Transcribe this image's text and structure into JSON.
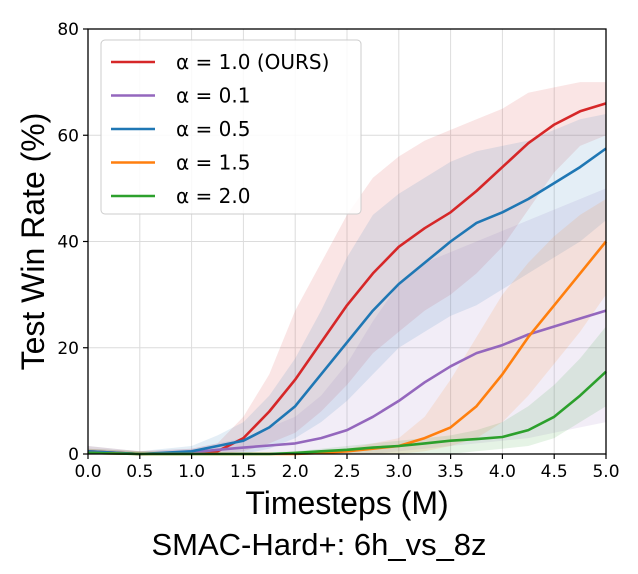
{
  "chart_data": {
    "type": "line",
    "title": "SMAC-Hard+: 6h_vs_8z",
    "xlabel": "Timesteps (M)",
    "ylabel": "Test Win Rate (%)",
    "xlim": [
      0,
      5
    ],
    "ylim": [
      0,
      80
    ],
    "xticks": [
      "0.0",
      "0.5",
      "1.0",
      "1.5",
      "2.0",
      "2.5",
      "3.0",
      "3.5",
      "4.0",
      "4.5",
      "5.0"
    ],
    "yticks": [
      "0",
      "20",
      "40",
      "60",
      "80"
    ],
    "grid": true,
    "legend_position": "top-left",
    "x": [
      0,
      0.5,
      1.0,
      1.25,
      1.5,
      1.75,
      2.0,
      2.25,
      2.5,
      2.75,
      3.0,
      3.25,
      3.5,
      3.75,
      4.0,
      4.25,
      4.5,
      4.75,
      5.0
    ],
    "series": [
      {
        "name": "α = 1.0 (OURS)",
        "color": "#d62728",
        "values": [
          0.5,
          0,
          0.2,
          0.5,
          3,
          8,
          14,
          21,
          28,
          34,
          39,
          42.5,
          45.5,
          49.5,
          54,
          58.5,
          62,
          64.5,
          66
        ],
        "lower": [
          0,
          0,
          0,
          0,
          0.5,
          2,
          4,
          8,
          13,
          19,
          23,
          27,
          30,
          34,
          39,
          46,
          53,
          58,
          60
        ],
        "upper": [
          1.5,
          0.5,
          1,
          2,
          7,
          15,
          27,
          36,
          45,
          52,
          56,
          59,
          61,
          63,
          65,
          68,
          69,
          70,
          70
        ]
      },
      {
        "name": "α = 0.1",
        "color": "#9467bd",
        "values": [
          0.3,
          0,
          0.3,
          0.8,
          1.2,
          1.6,
          2,
          3,
          4.5,
          7,
          10,
          13.5,
          16.5,
          19,
          20.5,
          22.5,
          24,
          25.5,
          27
        ],
        "lower": [
          0,
          0,
          0,
          0,
          0,
          0,
          0,
          0,
          0,
          0,
          0.5,
          1,
          1.5,
          2,
          2.5,
          3,
          4,
          5,
          6
        ],
        "upper": [
          1,
          0.5,
          1,
          2,
          3,
          5,
          7,
          11,
          17,
          25,
          32,
          36,
          38,
          40,
          42,
          44,
          46,
          48,
          50
        ]
      },
      {
        "name": "α = 0.5",
        "color": "#1f77b4",
        "values": [
          0.5,
          0,
          0.5,
          1.5,
          2.5,
          5,
          9,
          15,
          21,
          27,
          32,
          36,
          40,
          43.5,
          45.5,
          48,
          51,
          54,
          57.5
        ],
        "lower": [
          0,
          0,
          0,
          0,
          0,
          1,
          3,
          6,
          10,
          15,
          20,
          23,
          26,
          28,
          31,
          34,
          37,
          40,
          44
        ],
        "upper": [
          1.5,
          0.5,
          1.5,
          3.5,
          6,
          11,
          18,
          27,
          37,
          45,
          49,
          52,
          55,
          57,
          58,
          59,
          61,
          63,
          64
        ]
      },
      {
        "name": "α = 1.5",
        "color": "#ff7f0e",
        "values": [
          0.2,
          0,
          0,
          0,
          0,
          0,
          0,
          0.2,
          0.5,
          1,
          1.5,
          3,
          5,
          9,
          15,
          22,
          28,
          34,
          40
        ],
        "lower": [
          0,
          0,
          0,
          0,
          0,
          0,
          0,
          0,
          0,
          0,
          0,
          0.5,
          1.5,
          3,
          6,
          11,
          17,
          23,
          30
        ],
        "upper": [
          1,
          0.5,
          0.3,
          0.3,
          0.3,
          0.3,
          0.3,
          0.5,
          1,
          2,
          3,
          7,
          14,
          22,
          30,
          36,
          41,
          45,
          48
        ]
      },
      {
        "name": "α = 2.0",
        "color": "#2ca02c",
        "values": [
          0.2,
          0,
          0,
          0,
          0,
          0,
          0.2,
          0.5,
          0.8,
          1.2,
          1.5,
          2,
          2.5,
          2.8,
          3.2,
          4.5,
          7,
          11,
          15.5
        ],
        "lower": [
          0,
          0,
          0,
          0,
          0,
          0,
          0,
          0,
          0,
          0,
          0,
          0,
          0,
          0.5,
          1,
          1.5,
          3,
          6,
          9
        ],
        "upper": [
          1,
          0.5,
          0.3,
          0.3,
          0.3,
          0.3,
          0.5,
          1,
          1.5,
          2,
          2.5,
          3,
          3.5,
          4.5,
          6,
          9,
          13,
          18,
          24
        ]
      }
    ]
  }
}
